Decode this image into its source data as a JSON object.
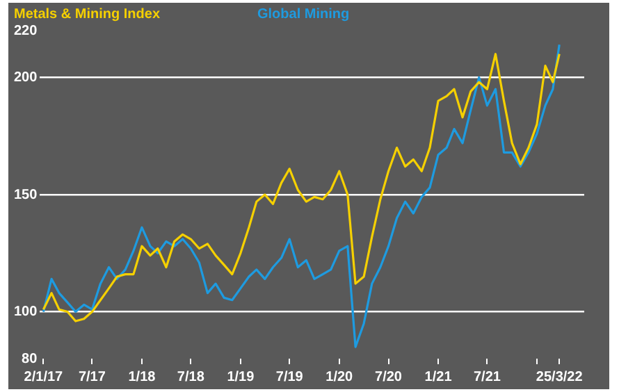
{
  "chart_data": {
    "type": "line",
    "x": [
      "2017-01-02",
      "2017-02-01",
      "2017-03-01",
      "2017-04-01",
      "2017-05-01",
      "2017-06-01",
      "2017-07-01",
      "2017-08-01",
      "2017-09-01",
      "2017-10-01",
      "2017-11-01",
      "2017-12-01",
      "2018-01-01",
      "2018-02-01",
      "2018-03-01",
      "2018-04-01",
      "2018-05-01",
      "2018-06-01",
      "2018-07-01",
      "2018-08-01",
      "2018-09-01",
      "2018-10-01",
      "2018-11-01",
      "2018-12-01",
      "2019-01-01",
      "2019-02-01",
      "2019-03-01",
      "2019-04-01",
      "2019-05-01",
      "2019-06-01",
      "2019-07-01",
      "2019-08-01",
      "2019-09-01",
      "2019-10-01",
      "2019-11-01",
      "2019-12-01",
      "2020-01-01",
      "2020-02-01",
      "2020-03-01",
      "2020-04-01",
      "2020-05-01",
      "2020-06-01",
      "2020-07-01",
      "2020-08-01",
      "2020-09-01",
      "2020-10-01",
      "2020-11-01",
      "2020-12-01",
      "2021-01-01",
      "2021-02-01",
      "2021-03-01",
      "2021-04-01",
      "2021-05-01",
      "2021-06-01",
      "2021-07-01",
      "2021-08-01",
      "2021-09-01",
      "2021-10-01",
      "2021-11-01",
      "2021-12-01",
      "2022-01-01",
      "2022-02-01",
      "2022-03-01",
      "2022-03-25"
    ],
    "series": [
      {
        "name": "Metals & Mining Index",
        "color": "#f5d000",
        "values": [
          101,
          108,
          101,
          100,
          96,
          97,
          100,
          105,
          110,
          115,
          116,
          116,
          128,
          124,
          127,
          119,
          130,
          133,
          131,
          127,
          129,
          124,
          120,
          116,
          125,
          136,
          147,
          150,
          146,
          155,
          161,
          152,
          147,
          149,
          148,
          152,
          160,
          150,
          112,
          115,
          132,
          148,
          160,
          170,
          162,
          165,
          160,
          170,
          190,
          192,
          195,
          183,
          194,
          198,
          195,
          210,
          190,
          172,
          163,
          170,
          180,
          205,
          198,
          210
        ]
      },
      {
        "name": "Global Mining",
        "color": "#1e9be0",
        "values": [
          100,
          114,
          108,
          104,
          100,
          103,
          101,
          112,
          119,
          114,
          118,
          126,
          136,
          128,
          125,
          130,
          128,
          131,
          127,
          121,
          108,
          112,
          106,
          105,
          110,
          115,
          118,
          114,
          119,
          123,
          131,
          119,
          122,
          114,
          116,
          118,
          126,
          128,
          85,
          95,
          112,
          119,
          128,
          140,
          147,
          142,
          149,
          153,
          167,
          170,
          178,
          172,
          186,
          200,
          188,
          195,
          168,
          168,
          162,
          168,
          176,
          188,
          195,
          214
        ]
      }
    ],
    "xlim": [
      "2016-12-20",
      "2022-06-25"
    ],
    "xticks": [
      {
        "value": "2017-01-02",
        "label": "2/1/17"
      },
      {
        "value": "2017-07-01",
        "label": "7/17"
      },
      {
        "value": "2018-01-01",
        "label": "1/18"
      },
      {
        "value": "2018-07-01",
        "label": "7/18"
      },
      {
        "value": "2019-01-01",
        "label": "1/19"
      },
      {
        "value": "2019-07-01",
        "label": "7/19"
      },
      {
        "value": "2020-01-01",
        "label": "1/20"
      },
      {
        "value": "2020-07-01",
        "label": "7/20"
      },
      {
        "value": "2021-01-01",
        "label": "1/21"
      },
      {
        "value": "2021-07-01",
        "label": "7/21"
      },
      {
        "value": "2022-01-01",
        "label": null
      },
      {
        "value": "2022-03-25",
        "label": "25/3/22"
      }
    ],
    "ylim": [
      80,
      220
    ],
    "yticks": [
      80,
      100,
      150,
      200,
      220
    ],
    "grid": "y",
    "legend": "top left",
    "marker": "none",
    "line_style": "solid"
  }
}
